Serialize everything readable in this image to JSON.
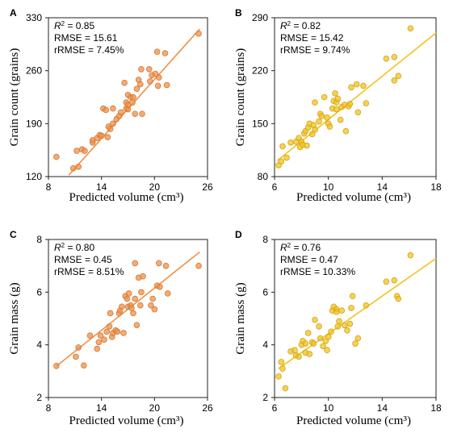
{
  "chart_data": [
    {
      "type": "scatter",
      "panel": "A",
      "color": "#F28F44",
      "xlabel": "Predicted volume (cm³)",
      "ylabel": "Grain count (grains)",
      "xlim": [
        8,
        26
      ],
      "ylim": [
        120,
        330
      ],
      "xticks": [
        8,
        14,
        20,
        26
      ],
      "yticks": [
        120,
        190,
        260,
        330
      ],
      "stats": {
        "r2_label": "R",
        "r2_value": "= 0.85",
        "rmse": "RMSE = 15.61",
        "rrmse": "rRMSE = 7.45%"
      },
      "fit_line": {
        "x": [
          10.3,
          25.1
        ],
        "y": [
          122,
          315
        ]
      },
      "points": [
        {
          "x": 8.9,
          "y": 146
        },
        {
          "x": 10.8,
          "y": 131
        },
        {
          "x": 11.2,
          "y": 154
        },
        {
          "x": 11.4,
          "y": 133
        },
        {
          "x": 11.8,
          "y": 156
        },
        {
          "x": 12.1,
          "y": 154
        },
        {
          "x": 13.0,
          "y": 165
        },
        {
          "x": 13.0,
          "y": 168
        },
        {
          "x": 13.5,
          "y": 171
        },
        {
          "x": 13.8,
          "y": 175
        },
        {
          "x": 14.0,
          "y": 174
        },
        {
          "x": 14.2,
          "y": 210
        },
        {
          "x": 14.5,
          "y": 208
        },
        {
          "x": 14.7,
          "y": 172
        },
        {
          "x": 14.8,
          "y": 186
        },
        {
          "x": 15.0,
          "y": 183
        },
        {
          "x": 15.3,
          "y": 190
        },
        {
          "x": 15.3,
          "y": 210
        },
        {
          "x": 15.7,
          "y": 196
        },
        {
          "x": 16.0,
          "y": 200
        },
        {
          "x": 16.2,
          "y": 205
        },
        {
          "x": 16.6,
          "y": 244
        },
        {
          "x": 16.8,
          "y": 218
        },
        {
          "x": 16.8,
          "y": 210
        },
        {
          "x": 17.0,
          "y": 215
        },
        {
          "x": 17.0,
          "y": 228
        },
        {
          "x": 17.0,
          "y": 209
        },
        {
          "x": 17.3,
          "y": 225
        },
        {
          "x": 17.5,
          "y": 218
        },
        {
          "x": 17.6,
          "y": 225
        },
        {
          "x": 17.8,
          "y": 203
        },
        {
          "x": 18.0,
          "y": 236
        },
        {
          "x": 18.2,
          "y": 248
        },
        {
          "x": 18.4,
          "y": 242
        },
        {
          "x": 18.5,
          "y": 262
        },
        {
          "x": 18.6,
          "y": 203
        },
        {
          "x": 19.4,
          "y": 262
        },
        {
          "x": 19.5,
          "y": 246
        },
        {
          "x": 19.7,
          "y": 254
        },
        {
          "x": 20.1,
          "y": 256
        },
        {
          "x": 20.3,
          "y": 285
        },
        {
          "x": 20.4,
          "y": 240
        },
        {
          "x": 20.5,
          "y": 251
        },
        {
          "x": 21.2,
          "y": 283
        },
        {
          "x": 21.4,
          "y": 241
        },
        {
          "x": 25.0,
          "y": 309
        }
      ]
    },
    {
      "type": "scatter",
      "panel": "B",
      "color": "#F3C21C",
      "xlabel": "Predicted volume (cm³)",
      "ylabel": "Grain count (grains)",
      "xlim": [
        6,
        18
      ],
      "ylim": [
        80,
        290
      ],
      "xticks": [
        6,
        10,
        14,
        18
      ],
      "yticks": [
        80,
        150,
        220,
        290
      ],
      "stats": {
        "r2_label": "R",
        "r2_value": "= 0.82",
        "rmse": "RMSE = 15.42",
        "rrmse": "rRMSE = 9.74%"
      },
      "fit_line": {
        "x": [
          6.2,
          18.0
        ],
        "y": [
          101,
          270
        ]
      },
      "points": [
        {
          "x": 6.3,
          "y": 95
        },
        {
          "x": 6.5,
          "y": 100
        },
        {
          "x": 6.6,
          "y": 120
        },
        {
          "x": 6.9,
          "y": 105
        },
        {
          "x": 7.2,
          "y": 125
        },
        {
          "x": 7.6,
          "y": 126
        },
        {
          "x": 7.8,
          "y": 131
        },
        {
          "x": 7.9,
          "y": 119
        },
        {
          "x": 8.0,
          "y": 126
        },
        {
          "x": 8.1,
          "y": 122
        },
        {
          "x": 8.2,
          "y": 137
        },
        {
          "x": 8.3,
          "y": 140
        },
        {
          "x": 8.4,
          "y": 121
        },
        {
          "x": 8.5,
          "y": 145
        },
        {
          "x": 8.6,
          "y": 150
        },
        {
          "x": 8.8,
          "y": 136
        },
        {
          "x": 8.9,
          "y": 148
        },
        {
          "x": 9.0,
          "y": 142
        },
        {
          "x": 9.0,
          "y": 178
        },
        {
          "x": 9.3,
          "y": 153
        },
        {
          "x": 9.4,
          "y": 163
        },
        {
          "x": 9.5,
          "y": 160
        },
        {
          "x": 9.7,
          "y": 185
        },
        {
          "x": 9.9,
          "y": 158
        },
        {
          "x": 10.0,
          "y": 150
        },
        {
          "x": 10.1,
          "y": 146
        },
        {
          "x": 10.3,
          "y": 170
        },
        {
          "x": 10.4,
          "y": 180
        },
        {
          "x": 10.5,
          "y": 190
        },
        {
          "x": 10.6,
          "y": 169
        },
        {
          "x": 10.6,
          "y": 178
        },
        {
          "x": 10.7,
          "y": 183
        },
        {
          "x": 10.9,
          "y": 155
        },
        {
          "x": 11.0,
          "y": 172
        },
        {
          "x": 11.2,
          "y": 175
        },
        {
          "x": 11.3,
          "y": 140
        },
        {
          "x": 11.5,
          "y": 173
        },
        {
          "x": 11.6,
          "y": 176
        },
        {
          "x": 11.7,
          "y": 198
        },
        {
          "x": 12.1,
          "y": 202
        },
        {
          "x": 12.2,
          "y": 165
        },
        {
          "x": 12.6,
          "y": 200
        },
        {
          "x": 12.8,
          "y": 177
        },
        {
          "x": 14.3,
          "y": 236
        },
        {
          "x": 14.9,
          "y": 207
        },
        {
          "x": 14.9,
          "y": 238
        },
        {
          "x": 15.2,
          "y": 213
        },
        {
          "x": 16.1,
          "y": 276
        }
      ]
    },
    {
      "type": "scatter",
      "panel": "C",
      "color": "#F28F44",
      "xlabel": "Predicted volume (cm³)",
      "ylabel": "Grain mass (g)",
      "xlim": [
        8,
        26
      ],
      "ylim": [
        2,
        8
      ],
      "xticks": [
        8,
        14,
        20,
        26
      ],
      "yticks": [
        2,
        4,
        6,
        8
      ],
      "stats": {
        "r2_label": "R",
        "r2_value": "= 0.80",
        "rmse": "RMSE = 0.45",
        "rrmse": "rRMSE = 8.51%"
      },
      "fit_line": {
        "x": [
          8.9,
          25.1
        ],
        "y": [
          3.19,
          7.52
        ]
      },
      "points": [
        {
          "x": 8.9,
          "y": 3.2
        },
        {
          "x": 11.1,
          "y": 3.55
        },
        {
          "x": 11.4,
          "y": 3.9
        },
        {
          "x": 12.0,
          "y": 3.22
        },
        {
          "x": 12.7,
          "y": 4.35
        },
        {
          "x": 13.5,
          "y": 3.85
        },
        {
          "x": 13.7,
          "y": 4.1
        },
        {
          "x": 13.9,
          "y": 4.35
        },
        {
          "x": 14.3,
          "y": 4.2
        },
        {
          "x": 14.6,
          "y": 4.5
        },
        {
          "x": 14.9,
          "y": 4.7
        },
        {
          "x": 15.0,
          "y": 5.2
        },
        {
          "x": 15.2,
          "y": 4.3
        },
        {
          "x": 15.3,
          "y": 4.45
        },
        {
          "x": 15.6,
          "y": 4.55
        },
        {
          "x": 15.8,
          "y": 4.5
        },
        {
          "x": 16.0,
          "y": 5.2
        },
        {
          "x": 16.1,
          "y": 5.3
        },
        {
          "x": 16.3,
          "y": 5.45
        },
        {
          "x": 16.5,
          "y": 4.45
        },
        {
          "x": 16.7,
          "y": 5.85
        },
        {
          "x": 16.9,
          "y": 5.75
        },
        {
          "x": 17.0,
          "y": 5.45
        },
        {
          "x": 17.1,
          "y": 5.95
        },
        {
          "x": 17.3,
          "y": 5.5
        },
        {
          "x": 17.4,
          "y": 5.4
        },
        {
          "x": 17.6,
          "y": 5.2
        },
        {
          "x": 17.8,
          "y": 7.1
        },
        {
          "x": 17.8,
          "y": 5.75
        },
        {
          "x": 18.0,
          "y": 4.75
        },
        {
          "x": 18.2,
          "y": 6.55
        },
        {
          "x": 18.4,
          "y": 5.5
        },
        {
          "x": 18.5,
          "y": 6.0
        },
        {
          "x": 18.7,
          "y": 6.6
        },
        {
          "x": 19.6,
          "y": 5.5
        },
        {
          "x": 19.8,
          "y": 5.75
        },
        {
          "x": 20.0,
          "y": 5.35
        },
        {
          "x": 20.3,
          "y": 6.25
        },
        {
          "x": 20.5,
          "y": 7.1
        },
        {
          "x": 20.6,
          "y": 6.2
        },
        {
          "x": 21.3,
          "y": 7.0
        },
        {
          "x": 21.5,
          "y": 5.95
        },
        {
          "x": 25.0,
          "y": 7.0
        }
      ]
    },
    {
      "type": "scatter",
      "panel": "D",
      "color": "#F3C21C",
      "xlabel": "Predicted volume (cm³)",
      "ylabel": "Grain mass (g)",
      "xlim": [
        6,
        18
      ],
      "ylim": [
        2,
        8
      ],
      "xticks": [
        6,
        10,
        14,
        18
      ],
      "yticks": [
        2,
        4,
        6,
        8
      ],
      "stats": {
        "r2_label": "R",
        "r2_value": "= 0.76",
        "rmse": "RMSE = 0.47",
        "rrmse": "rRMSE = 10.33%"
      },
      "fit_line": {
        "x": [
          6.3,
          18.0
        ],
        "y": [
          3.1,
          7.28
        ]
      },
      "points": [
        {
          "x": 6.3,
          "y": 2.8
        },
        {
          "x": 6.5,
          "y": 3.35
        },
        {
          "x": 6.6,
          "y": 3.1
        },
        {
          "x": 6.8,
          "y": 2.35
        },
        {
          "x": 7.2,
          "y": 3.75
        },
        {
          "x": 7.5,
          "y": 3.8
        },
        {
          "x": 7.6,
          "y": 3.6
        },
        {
          "x": 7.8,
          "y": 3.55
        },
        {
          "x": 8.0,
          "y": 4.0
        },
        {
          "x": 8.1,
          "y": 4.15
        },
        {
          "x": 8.3,
          "y": 3.7
        },
        {
          "x": 8.3,
          "y": 4.05
        },
        {
          "x": 8.5,
          "y": 4.45
        },
        {
          "x": 8.6,
          "y": 3.65
        },
        {
          "x": 8.8,
          "y": 4.1
        },
        {
          "x": 8.9,
          "y": 4.05
        },
        {
          "x": 9.0,
          "y": 4.95
        },
        {
          "x": 9.3,
          "y": 4.7
        },
        {
          "x": 9.4,
          "y": 4.25
        },
        {
          "x": 9.6,
          "y": 3.95
        },
        {
          "x": 9.8,
          "y": 4.15
        },
        {
          "x": 9.9,
          "y": 3.8
        },
        {
          "x": 10.0,
          "y": 4.3
        },
        {
          "x": 10.2,
          "y": 4.5
        },
        {
          "x": 10.3,
          "y": 5.3
        },
        {
          "x": 10.4,
          "y": 5.45
        },
        {
          "x": 10.6,
          "y": 5.35
        },
        {
          "x": 10.6,
          "y": 5.25
        },
        {
          "x": 10.7,
          "y": 4.7
        },
        {
          "x": 10.8,
          "y": 4.9
        },
        {
          "x": 11.0,
          "y": 5.3
        },
        {
          "x": 11.2,
          "y": 4.75
        },
        {
          "x": 11.4,
          "y": 4.55
        },
        {
          "x": 11.6,
          "y": 4.8
        },
        {
          "x": 11.7,
          "y": 5.4
        },
        {
          "x": 11.8,
          "y": 5.85
        },
        {
          "x": 12.0,
          "y": 4.05
        },
        {
          "x": 12.2,
          "y": 4.25
        },
        {
          "x": 12.8,
          "y": 5.5
        },
        {
          "x": 14.3,
          "y": 6.4
        },
        {
          "x": 14.9,
          "y": 6.45
        },
        {
          "x": 15.1,
          "y": 5.85
        },
        {
          "x": 15.2,
          "y": 5.75
        },
        {
          "x": 16.1,
          "y": 7.4
        }
      ]
    }
  ]
}
